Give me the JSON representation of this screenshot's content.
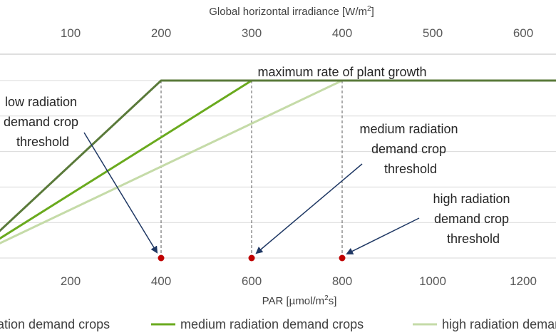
{
  "chart_data": {
    "type": "line",
    "x_axis_bottom": {
      "label": "PAR [µmol/m²s]",
      "label_parts": [
        "PAR [µmol/m",
        "2",
        "s]"
      ],
      "ticks": [
        200,
        400,
        600,
        800,
        1000,
        1200
      ],
      "range": [
        0,
        1300
      ]
    },
    "x_axis_top": {
      "label": "Global horizontal irradiance [W/m²]",
      "label_parts": [
        "Global horizontal irradiance [W/m",
        "2",
        "]"
      ],
      "ticks": [
        100,
        200,
        300,
        400,
        500,
        600
      ],
      "range": [
        0,
        650
      ]
    },
    "y_axis": {
      "range": [
        0,
        100
      ],
      "gridlines": [
        0,
        20,
        40,
        60,
        80,
        100
      ],
      "grid": true
    },
    "series": [
      {
        "name": "low radiation demand crops",
        "color": "#5a7a3a",
        "x": [
          0,
          400,
          1300
        ],
        "y": [
          5,
          100,
          100
        ]
      },
      {
        "name": "medium radiation demand crops",
        "color": "#6aaa1e",
        "x": [
          0,
          600,
          1300
        ],
        "y": [
          4,
          100,
          100
        ]
      },
      {
        "name": "high radiation demand crops",
        "color": "#c5dba8",
        "x": [
          0,
          800,
          1300
        ],
        "y": [
          3,
          100,
          100
        ]
      }
    ],
    "thresholds": [
      {
        "x": 400,
        "color": "#c00000"
      },
      {
        "x": 600,
        "color": "#c00000"
      },
      {
        "x": 800,
        "color": "#c00000"
      }
    ],
    "annotations": [
      {
        "text": "maximum rate of plant growth",
        "lines": [
          "maximum rate of plant growth"
        ]
      },
      {
        "text": "low radiation demand crop threshold",
        "lines": [
          "low radiation",
          "demand crop",
          "threshold"
        ]
      },
      {
        "text": "medium radiation demand crop threshold",
        "lines": [
          "medium radiation",
          "demand crop",
          "threshold"
        ]
      },
      {
        "text": "high radiation demand crop threshold",
        "lines": [
          "high radiation",
          "demand crop",
          "threshold"
        ]
      }
    ],
    "arrow_color": "#1f3864",
    "legend": {
      "position": "bottom",
      "items": [
        "low radiation demand crops",
        "medium radiation demand crops",
        "high radiation demand crops"
      ]
    }
  }
}
